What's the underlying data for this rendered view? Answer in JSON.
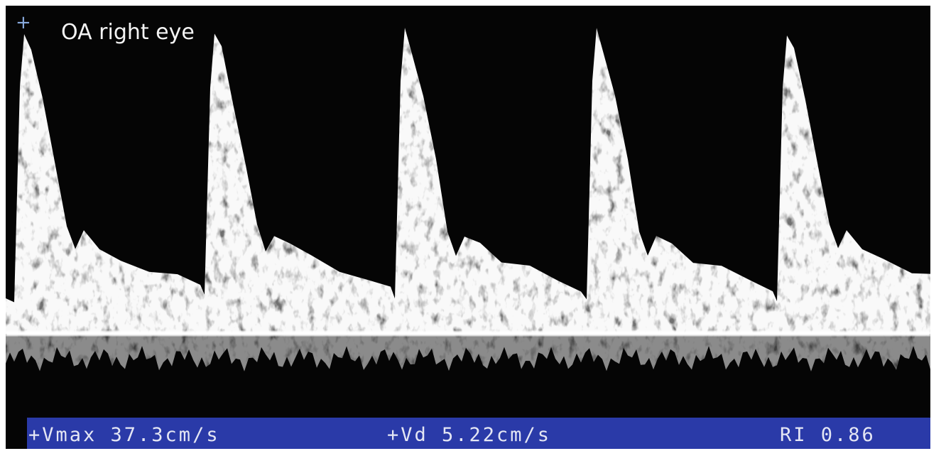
{
  "header": {
    "title": "OA right eye"
  },
  "status_bar": {
    "items": [
      "+Vmax 37.3cm/s",
      "+Vd 5.22cm/s",
      "RI 0.86"
    ]
  }
}
